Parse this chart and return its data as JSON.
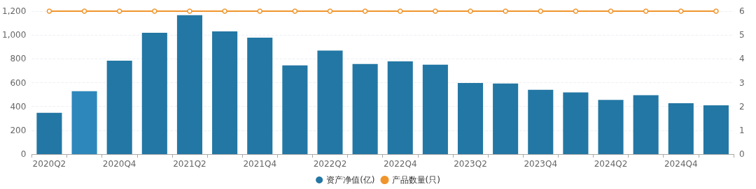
{
  "chart_data": {
    "type": "bar",
    "categories": [
      "2020Q2",
      null,
      "2020Q4",
      null,
      "2021Q2",
      null,
      "2021Q4",
      null,
      "2022Q2",
      null,
      "2022Q4",
      null,
      "2023Q2",
      null,
      "2023Q4",
      null,
      "2024Q2",
      null,
      "2024Q4",
      null
    ],
    "series": [
      {
        "name": "资产净值(亿)",
        "color": "#2377a4",
        "colors": [
          "#2377a4",
          "#2e87bb",
          "#2377a4",
          "#2377a4",
          "#2377a4",
          "#2377a4",
          "#2377a4",
          "#2377a4",
          "#2377a4",
          "#2377a4",
          "#2377a4",
          "#2377a4",
          "#2377a4",
          "#2377a4",
          "#2377a4",
          "#2377a4",
          "#2377a4",
          "#2377a4",
          "#2377a4",
          "#2377a4"
        ],
        "values": [
          347,
          529,
          785,
          1018,
          1166,
          1030,
          978,
          745,
          870,
          756,
          779,
          751,
          597,
          592,
          540,
          518,
          455,
          495,
          427,
          410
        ]
      },
      {
        "name": "产品数量(只)",
        "type": "line",
        "axis": "y2",
        "color": "#f0952c",
        "values": [
          6,
          6,
          6,
          6,
          6,
          6,
          6,
          6,
          6,
          6,
          6,
          6,
          6,
          6,
          6,
          6,
          6,
          6,
          6,
          6
        ]
      }
    ],
    "ylim": [
      0,
      1200
    ],
    "yticks": [
      0,
      200,
      400,
      600,
      800,
      {
        "value": 1000,
        "label": "1,000"
      },
      {
        "value": 1200,
        "label": "1,200"
      }
    ],
    "y2lim": [
      0,
      6
    ],
    "y2ticks": [
      0,
      1,
      2,
      3,
      4,
      5,
      6
    ],
    "grid": "y",
    "legend": "bottom",
    "marker": "circle",
    "line_style": "solid"
  }
}
